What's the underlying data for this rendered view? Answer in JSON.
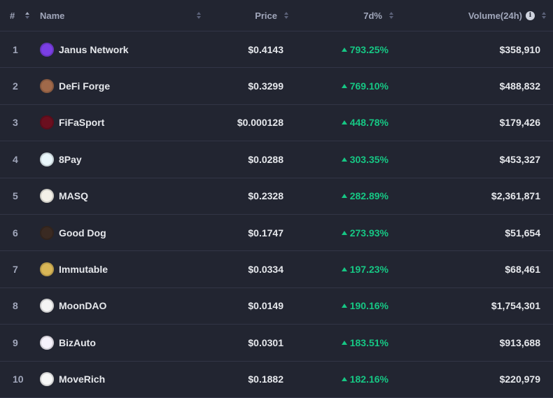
{
  "header": {
    "rank": "#",
    "name": "Name",
    "price": "Price",
    "change": "7d%",
    "volume": "Volume(24h)",
    "info_icon": "i"
  },
  "rows": [
    {
      "rank": "1",
      "name": "Janus Network",
      "price": "$0.4143",
      "change": "793.25%",
      "volume": "$358,910",
      "icon": "janus-network-logo-icon",
      "color": "#7b3fe4"
    },
    {
      "rank": "2",
      "name": "DeFi Forge",
      "price": "$0.3299",
      "change": "769.10%",
      "volume": "$488,832",
      "icon": "defi-forge-logo-icon",
      "color": "#a0694a"
    },
    {
      "rank": "3",
      "name": "FiFaSport",
      "price": "$0.000128",
      "change": "448.78%",
      "volume": "$179,426",
      "icon": "fifasport-logo-icon",
      "color": "#6b0f1f"
    },
    {
      "rank": "4",
      "name": "8Pay",
      "price": "$0.0288",
      "change": "303.35%",
      "volume": "$453,327",
      "icon": "8pay-logo-icon",
      "color": "#e9f6fb"
    },
    {
      "rank": "5",
      "name": "MASQ",
      "price": "$0.2328",
      "change": "282.89%",
      "volume": "$2,361,871",
      "icon": "masq-logo-icon",
      "color": "#f3f0e8"
    },
    {
      "rank": "6",
      "name": "Good Dog",
      "price": "$0.1747",
      "change": "273.93%",
      "volume": "$51,654",
      "icon": "good-dog-logo-icon",
      "color": "#3a2a22"
    },
    {
      "rank": "7",
      "name": "Immutable",
      "price": "$0.0334",
      "change": "197.23%",
      "volume": "$68,461",
      "icon": "immutable-logo-icon",
      "color": "#d8b657"
    },
    {
      "rank": "8",
      "name": "MoonDAO",
      "price": "$0.0149",
      "change": "190.16%",
      "volume": "$1,754,301",
      "icon": "moondao-logo-icon",
      "color": "#f4f4f4"
    },
    {
      "rank": "9",
      "name": "BizAuto",
      "price": "$0.0301",
      "change": "183.51%",
      "volume": "$913,688",
      "icon": "bizauto-logo-icon",
      "color": "#f6f2fb"
    },
    {
      "rank": "10",
      "name": "MoveRich",
      "price": "$0.1882",
      "change": "182.16%",
      "volume": "$220,979",
      "icon": "moverich-logo-icon",
      "color": "#f7f7f7"
    }
  ],
  "colors": {
    "positive": "#16c784",
    "background": "#222531",
    "divider": "#323546"
  }
}
